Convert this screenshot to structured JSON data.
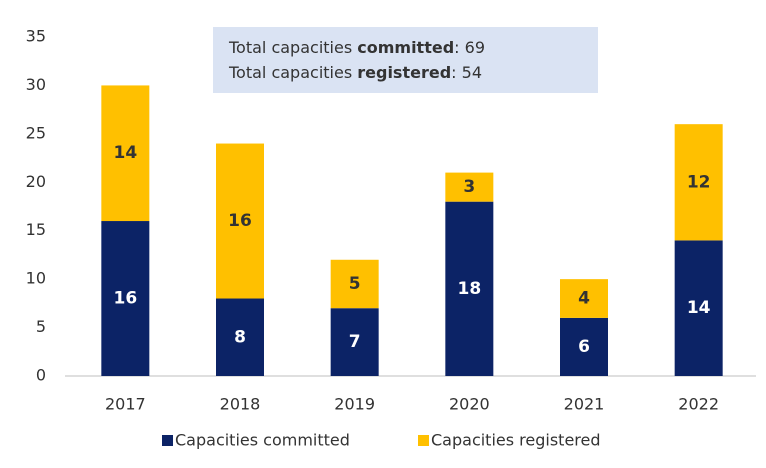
{
  "chart_data": {
    "type": "stacked_bar",
    "categories": [
      "2017",
      "2018",
      "2019",
      "2020",
      "2021",
      "2022"
    ],
    "series": [
      {
        "name": "Capacities committed",
        "color": "#0c2366",
        "values": [
          16,
          8,
          7,
          18,
          6,
          14
        ]
      },
      {
        "name": "Capacities registered",
        "color": "#ffc000",
        "values": [
          14,
          16,
          5,
          3,
          4,
          12
        ]
      }
    ],
    "ylim": [
      0,
      35
    ],
    "yticks": [
      0,
      5,
      10,
      15,
      20,
      25,
      30,
      35
    ],
    "grid": false,
    "legend": "bottom",
    "annotations": [
      {
        "parts": [
          "Total capacities ",
          "committed",
          ": 69"
        ]
      },
      {
        "parts": [
          "Total capacities ",
          "registered",
          ": 54"
        ]
      }
    ]
  }
}
